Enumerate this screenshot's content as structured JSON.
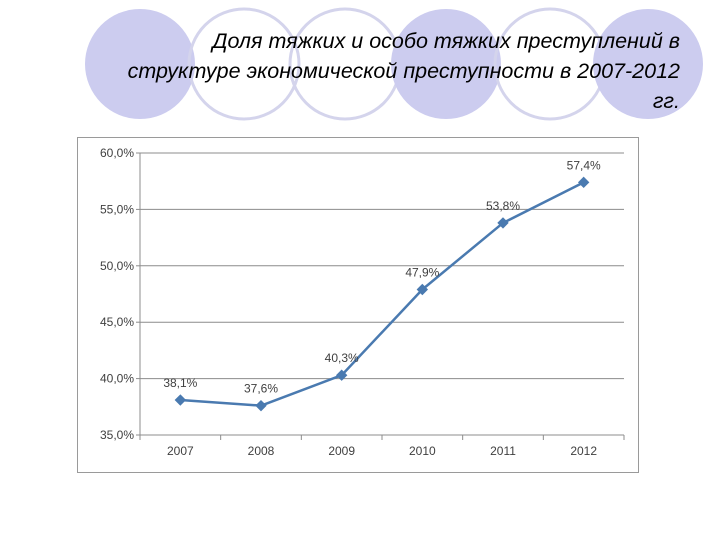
{
  "slide": {
    "title_lines": [
      "Доля тяжких и особо тяжких преступлений в",
      "структуре экономической преступности в 2007-2012",
      "гг."
    ]
  },
  "colors": {
    "line": "#4a7ab0",
    "circle_fill": "#ccccef",
    "circle_outline": "#d4d4ec"
  },
  "chart_data": {
    "type": "line",
    "title": "",
    "xlabel": "",
    "ylabel": "",
    "categories": [
      "2007",
      "2008",
      "2009",
      "2010",
      "2011",
      "2012"
    ],
    "series": [
      {
        "values": [
          38.1,
          37.6,
          40.3,
          47.9,
          53.8,
          57.4
        ],
        "labels": [
          "38,1%",
          "37,6%",
          "40,3%",
          "47,9%",
          "53,8%",
          "57,4%"
        ]
      }
    ],
    "ylim": [
      35,
      60
    ],
    "yticks": [
      35,
      40,
      45,
      50,
      55,
      60
    ],
    "ytick_labels": [
      "35,0%",
      "40,0%",
      "45,0%",
      "50,0%",
      "55,0%",
      "60,0%"
    ],
    "grid": true,
    "legend": "none",
    "marker": "diamond"
  }
}
